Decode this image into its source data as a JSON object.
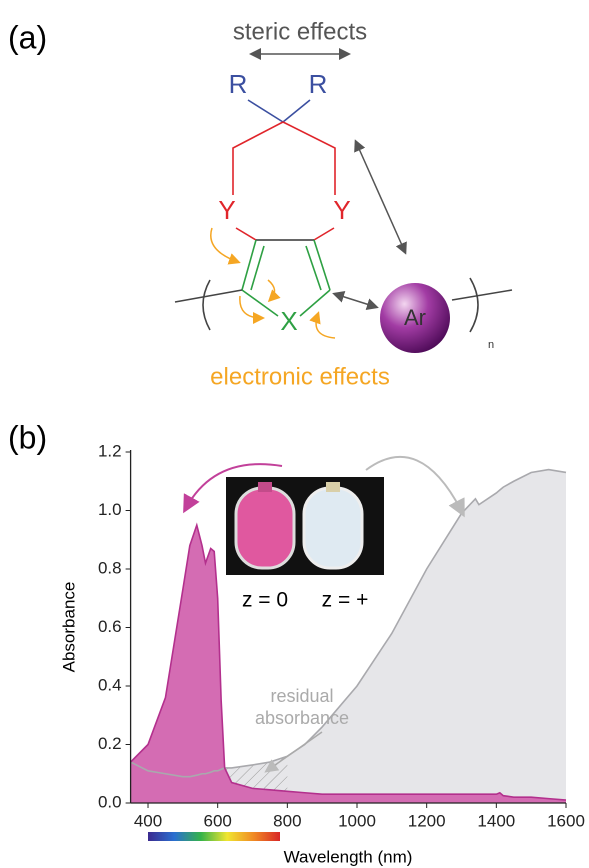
{
  "diagram": {
    "panel_label": "(a)",
    "steric_label": "steric effects",
    "substituent_left": "R",
    "substituent_right": "R",
    "heteroatom_left": "Y",
    "heteroatom_right": "Y",
    "ring_atom": "X",
    "aryl_unit": "Ar",
    "repeat_index": "n",
    "electronic_label": "electronic effects"
  },
  "chart_data": {
    "type": "area",
    "panel_label": "(b)",
    "x_label": "Wavelength (nm)",
    "y_label": "Absorbance",
    "x": [
      350,
      400,
      450,
      500,
      520,
      540,
      555,
      565,
      580,
      590,
      600,
      610,
      620,
      640,
      700,
      750,
      800,
      850,
      900,
      1000,
      1100,
      1200,
      1300,
      1340,
      1350,
      1400,
      1410,
      1420,
      1450,
      1500,
      1550,
      1600
    ],
    "series": [
      {
        "name": "z = +",
        "color": "#a9a9ad",
        "fill": "#e6e6e9",
        "values": [
          0.14,
          0.11,
          0.1,
          0.09,
          0.09,
          0.095,
          0.1,
          0.1,
          0.105,
          0.11,
          0.11,
          0.115,
          0.12,
          0.12,
          0.13,
          0.14,
          0.16,
          0.2,
          0.26,
          0.4,
          0.58,
          0.8,
          0.99,
          1.04,
          1.02,
          1.06,
          1.07,
          1.08,
          1.1,
          1.13,
          1.14,
          1.13
        ]
      },
      {
        "name": "z = 0",
        "color": "#b3308d",
        "fill": "#d46cb3",
        "values": [
          0.14,
          0.2,
          0.36,
          0.73,
          0.88,
          0.95,
          0.88,
          0.82,
          0.87,
          0.86,
          0.7,
          0.35,
          0.12,
          0.07,
          0.05,
          0.045,
          0.04,
          0.035,
          0.03,
          0.03,
          0.03,
          0.03,
          0.03,
          0.03,
          0.03,
          0.03,
          0.035,
          0.025,
          0.02,
          0.02,
          0.015,
          0.01
        ]
      }
    ],
    "xlim": [
      350,
      1600
    ],
    "xticks": [
      400,
      600,
      800,
      1000,
      1200,
      1400,
      1600
    ],
    "ylim": [
      0,
      1.2
    ],
    "yticks": [
      {
        "value": 0,
        "label": "0.0"
      },
      0.2,
      0.4,
      0.6,
      0.8,
      {
        "value": 1,
        "label": "1.0"
      },
      1.2
    ],
    "annotation": [
      "residual",
      "absorbance"
    ]
  }
}
